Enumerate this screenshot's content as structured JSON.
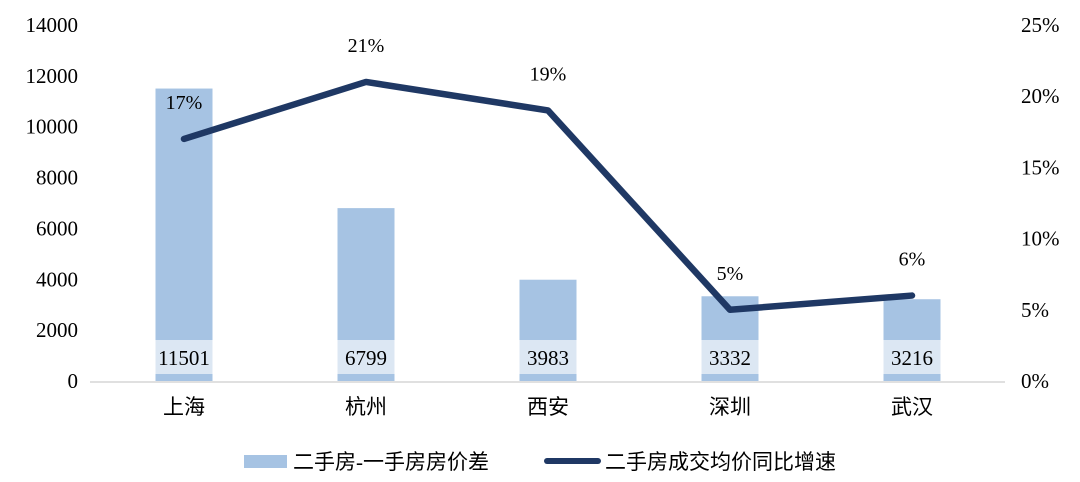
{
  "chart_data": {
    "type": "bar+line combo",
    "categories": [
      "上海",
      "杭州",
      "西安",
      "深圳",
      "武汉"
    ],
    "series": [
      {
        "name": "二手房-一手房房价差",
        "type": "bar",
        "axis": "left",
        "values": [
          11501,
          6799,
          3983,
          3332,
          3216
        ],
        "data_labels": [
          "11501",
          "6799",
          "3983",
          "3332",
          "3216"
        ],
        "color": "#a6c3e3",
        "label_box_color": "#dce7f3"
      },
      {
        "name": "二手房成交均价同比增速",
        "type": "line",
        "axis": "right",
        "values": [
          17,
          21,
          19,
          5,
          6
        ],
        "data_labels": [
          "17%",
          "21%",
          "19%",
          "5%",
          "6%"
        ],
        "color": "#1f3864"
      }
    ],
    "left_axis": {
      "min": 0,
      "max": 14000,
      "step": 2000,
      "tick_labels": [
        "14000",
        "12000",
        "10000",
        "8000",
        "6000",
        "4000",
        "2000",
        "0"
      ]
    },
    "right_axis": {
      "min": 0,
      "max": 25,
      "step": 5,
      "tick_labels": [
        "25%",
        "20%",
        "15%",
        "10%",
        "5%",
        "0%"
      ]
    },
    "title": "",
    "xlabel": "",
    "ylabel": "",
    "grid": false,
    "legend_position": "bottom",
    "axis_line_color": "#d6d6d6",
    "text_color": "#000000",
    "background_color": "#ffffff"
  }
}
